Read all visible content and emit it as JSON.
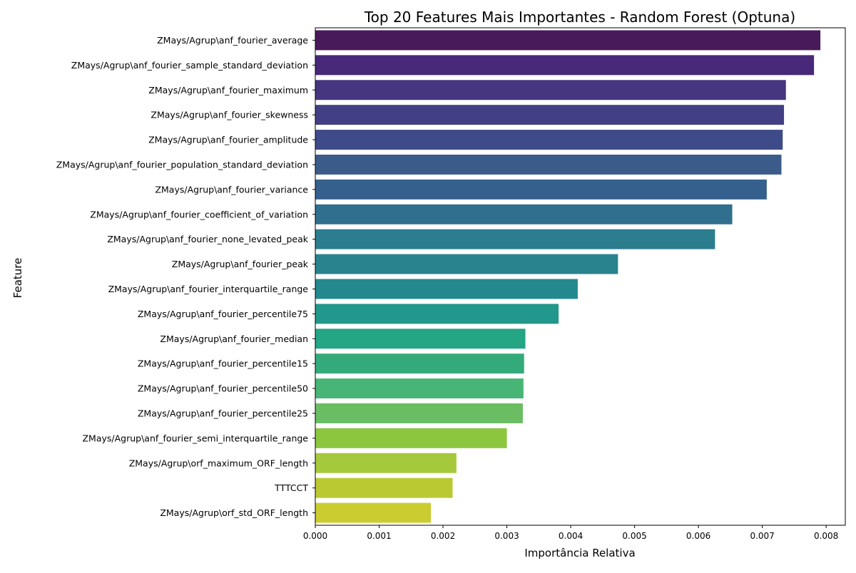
{
  "chart_data": {
    "type": "bar",
    "orientation": "horizontal",
    "title": "Top 20 Features Mais Importantes - Random Forest (Optuna)",
    "xlabel": "Importância Relativa",
    "ylabel": "Feature",
    "xlim": [
      0,
      0.0083
    ],
    "xticks": [
      0.0,
      0.001,
      0.002,
      0.003,
      0.004,
      0.005,
      0.006,
      0.007,
      0.008
    ],
    "xtick_labels": [
      "0.000",
      "0.001",
      "0.002",
      "0.003",
      "0.004",
      "0.005",
      "0.006",
      "0.007",
      "0.008"
    ],
    "grid": false,
    "legend": "none",
    "colormap": "viridis",
    "categories": [
      "ZMays/Agrup\\anf_fourier_average",
      "ZMays/Agrup\\anf_fourier_sample_standard_deviation",
      "ZMays/Agrup\\anf_fourier_maximum",
      "ZMays/Agrup\\anf_fourier_skewness",
      "ZMays/Agrup\\anf_fourier_amplitude",
      "ZMays/Agrup\\anf_fourier_population_standard_deviation",
      "ZMays/Agrup\\anf_fourier_variance",
      "ZMays/Agrup\\anf_fourier_coefficient_of_variation",
      "ZMays/Agrup\\anf_fourier_none_levated_peak",
      "ZMays/Agrup\\anf_fourier_peak",
      "ZMays/Agrup\\anf_fourier_interquartile_range",
      "ZMays/Agrup\\anf_fourier_percentile75",
      "ZMays/Agrup\\anf_fourier_median",
      "ZMays/Agrup\\anf_fourier_percentile15",
      "ZMays/Agrup\\anf_fourier_percentile50",
      "ZMays/Agrup\\anf_fourier_percentile25",
      "ZMays/Agrup\\anf_fourier_semi_interquartile_range",
      "ZMays/Agrup\\orf_maximum_ORF_length",
      "TTTCCT",
      "ZMays/Agrup\\orf_std_ORF_length"
    ],
    "values": [
      0.00791,
      0.00781,
      0.00737,
      0.00734,
      0.00732,
      0.0073,
      0.00707,
      0.00653,
      0.00626,
      0.00474,
      0.00411,
      0.00381,
      0.00329,
      0.00327,
      0.00326,
      0.00325,
      0.003,
      0.00221,
      0.00215,
      0.00181
    ],
    "colors": [
      "#481a5a",
      "#482878",
      "#46357f",
      "#433f85",
      "#3f4a89",
      "#3b5c8b",
      "#35608d",
      "#316f8e",
      "#2c7d8e",
      "#29838e",
      "#23898e",
      "#22978b",
      "#24a584",
      "#34aa7a",
      "#47b575",
      "#6abd62",
      "#8cc63f",
      "#a5c93b",
      "#b9c932",
      "#cbcc2f"
    ]
  }
}
